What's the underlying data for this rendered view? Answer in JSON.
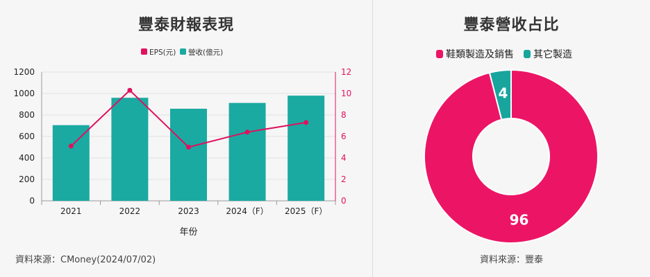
{
  "left": {
    "title": "豐泰財報表現",
    "source": "資料來源：CMoney(2024/07/02)"
  },
  "right": {
    "title": "豐泰營收占比",
    "source": "資料來源：豐泰"
  },
  "colors": {
    "eps": "#e0115f",
    "revenue": "#1aaaa2",
    "pink": "#ec1565",
    "teal": "#17a59e"
  },
  "chart_data": [
    {
      "type": "bar",
      "xlabel": "年份",
      "categories": [
        "2021",
        "2022",
        "2023",
        "2024（F）",
        "2025（F）"
      ],
      "ylim_left": [
        0,
        1200
      ],
      "yticks_left": [
        "0",
        "200",
        "400",
        "600",
        "800",
        "1000",
        "1200"
      ],
      "ylim_right": [
        0,
        12
      ],
      "yticks_right": [
        "0",
        "2",
        "4",
        "6",
        "8",
        "10",
        "12"
      ],
      "series": [
        {
          "name": "營收(億元)",
          "type": "bar",
          "axis": "left",
          "values": [
            705,
            960,
            858,
            912,
            980
          ]
        },
        {
          "name": "EPS(元)",
          "type": "line",
          "axis": "right",
          "values": [
            5.1,
            10.3,
            5.0,
            6.4,
            7.3
          ]
        }
      ],
      "legend_position": "top"
    },
    {
      "type": "pie",
      "donut": true,
      "labels": [
        "鞋類製造及銷售",
        "其它製造"
      ],
      "values": [
        96,
        4
      ],
      "value_labels": [
        "96",
        "4"
      ],
      "legend_position": "top"
    }
  ]
}
